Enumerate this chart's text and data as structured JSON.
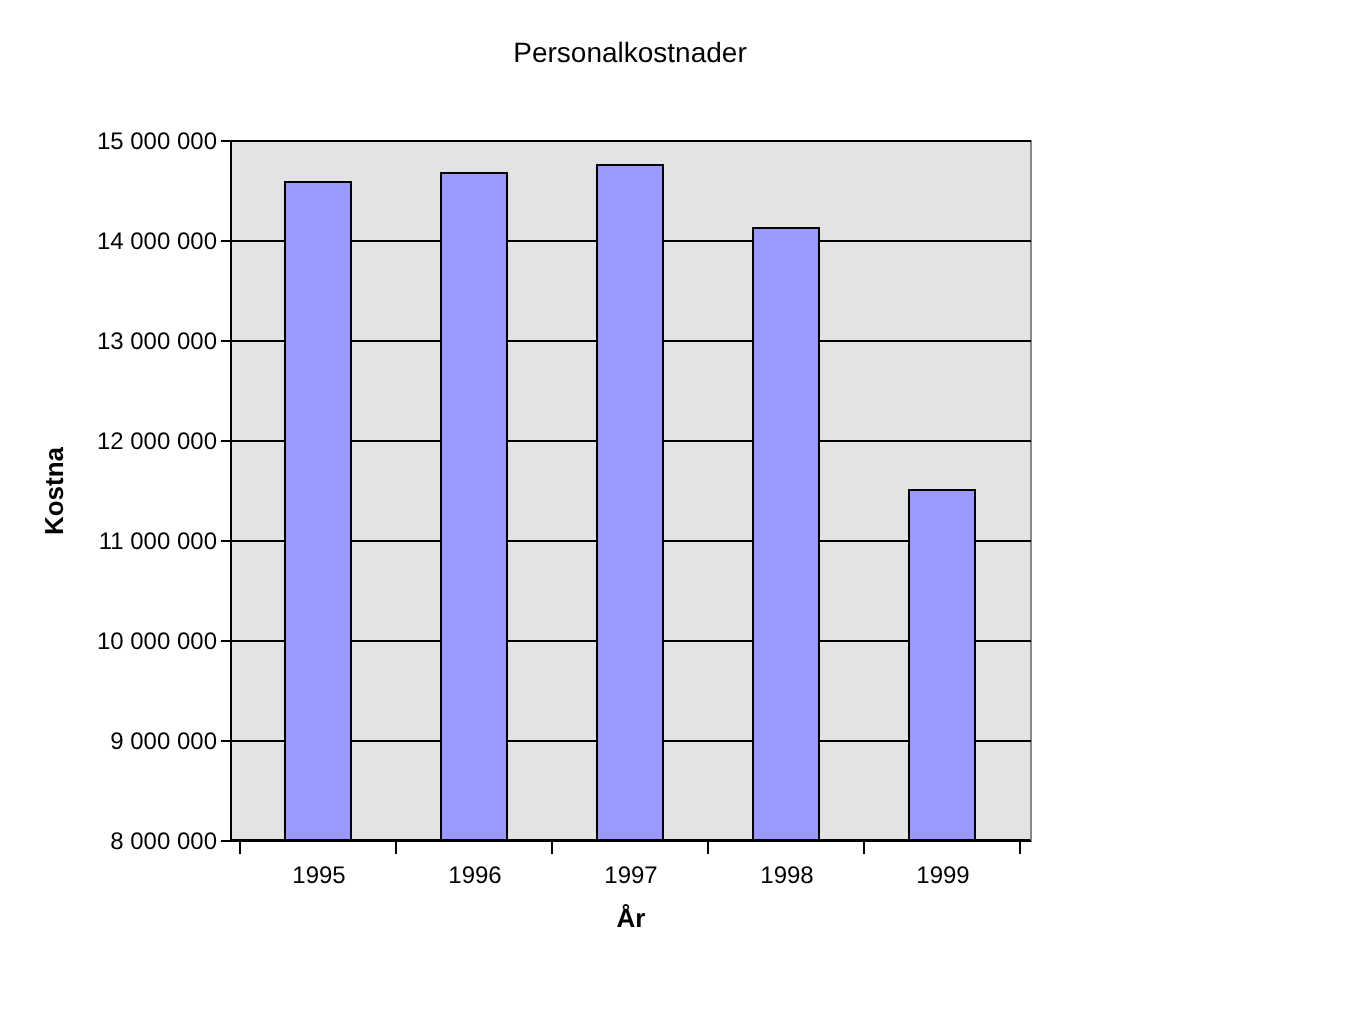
{
  "chart_data": {
    "type": "bar",
    "title": "Personalkostnader",
    "xlabel": "År",
    "ylabel": "Kostna",
    "categories": [
      "1995",
      "1996",
      "1997",
      "1998",
      "1999"
    ],
    "values": [
      14580000,
      14670000,
      14750000,
      14120000,
      11500000
    ],
    "color": "#9999ff",
    "ylim": [
      8000000,
      15000000
    ],
    "yticks": [
      {
        "value": 8000000,
        "label": "8 000 000"
      },
      {
        "value": 9000000,
        "label": "9 000 000"
      },
      {
        "value": 10000000,
        "label": "10 000 000"
      },
      {
        "value": 11000000,
        "label": "11 000 000"
      },
      {
        "value": 12000000,
        "label": "12 000 000"
      },
      {
        "value": 13000000,
        "label": "13 000 000"
      },
      {
        "value": 14000000,
        "label": "14 000 000"
      },
      {
        "value": 15000000,
        "label": "15 000 000"
      }
    ],
    "grid": "y"
  }
}
